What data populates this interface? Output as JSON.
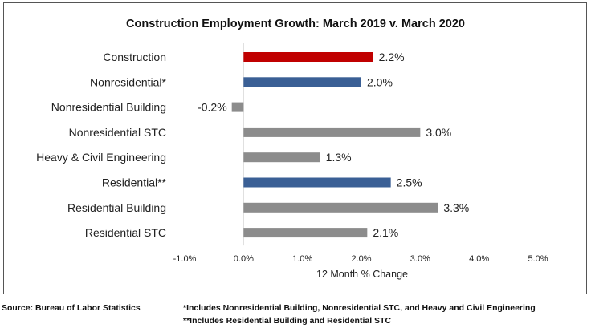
{
  "chart_data": {
    "type": "bar",
    "orientation": "horizontal",
    "title": "Construction Employment Growth: March 2019 v. March 2020",
    "xlabel": "12 Month % Change",
    "ylabel": "",
    "xlim": [
      -1.0,
      5.0
    ],
    "xticks": [
      "-1.0%",
      "0.0%",
      "1.0%",
      "2.0%",
      "3.0%",
      "4.0%",
      "5.0%"
    ],
    "categories": [
      "Construction",
      "Nonresidential*",
      "Nonresidential Building",
      "Nonresidential STC",
      "Heavy & Civil Engineering",
      "Residential**",
      "Residential Building",
      "Residential STC"
    ],
    "values": [
      2.2,
      2.0,
      -0.2,
      3.0,
      1.3,
      2.5,
      3.3,
      2.1
    ],
    "data_labels": [
      "2.2%",
      "2.0%",
      "-0.2%",
      "3.0%",
      "1.3%",
      "2.5%",
      "3.3%",
      "2.1%"
    ],
    "colors": [
      "#c00000",
      "#3a5f95",
      "#8c8c8c",
      "#8c8c8c",
      "#8c8c8c",
      "#3a5f95",
      "#8c8c8c",
      "#8c8c8c"
    ],
    "grid": false
  },
  "footer": {
    "source": "Source:  Bureau of Labor Statistics",
    "note1": "*Includes Nonresidential Building, Nonresidential STC, and Heavy and Civil Engineering",
    "note2": "**Includes Residential Building and Residential STC"
  }
}
